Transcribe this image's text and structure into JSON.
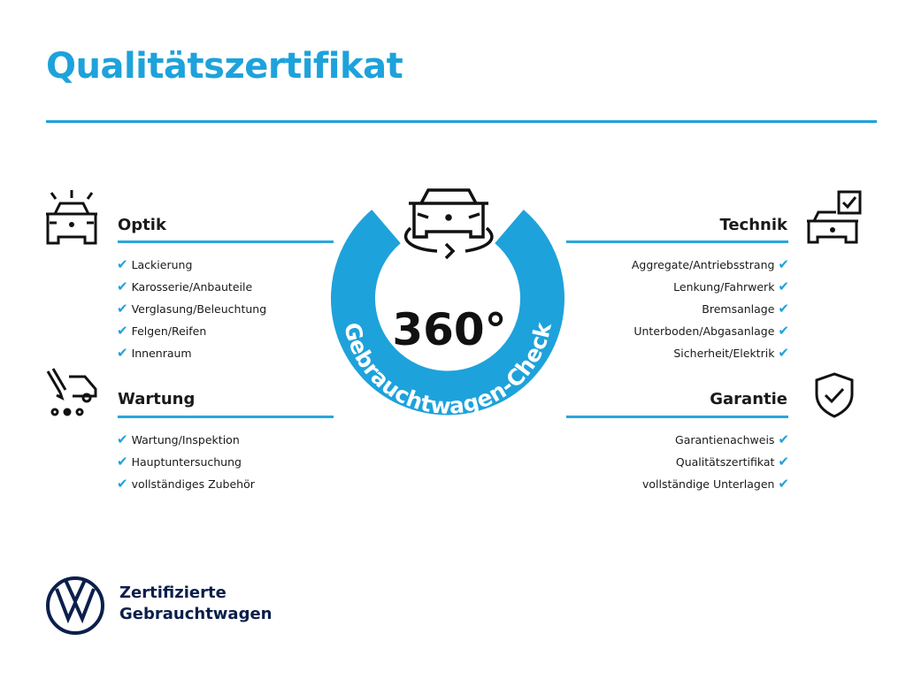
{
  "title": "Qualitätszertifikat",
  "center": {
    "big": "360°",
    "ring_text": "Gebrauchtwagen-Check"
  },
  "sections": {
    "optik": {
      "heading": "Optik",
      "items": [
        "Lackierung",
        "Karosserie/Anbauteile",
        "Verglasung/Beleuchtung",
        "Felgen/Reifen",
        "Innenraum"
      ]
    },
    "wartung": {
      "heading": "Wartung",
      "items": [
        "Wartung/Inspektion",
        "Hauptuntersuchung",
        "vollständiges Zubehör"
      ]
    },
    "technik": {
      "heading": "Technik",
      "items": [
        "Aggregate/Antriebsstrang",
        "Lenkung/Fahrwerk",
        "Bremsanlage",
        "Unterboden/Abgasanlage",
        "Sicherheit/Elektrik"
      ]
    },
    "garantie": {
      "heading": "Garantie",
      "items": [
        "Garantienachweis",
        "Qualitätszertifikat",
        "vollständige Unterlagen"
      ]
    }
  },
  "check": "✔",
  "footer": {
    "line1": "Zertifizierte",
    "line2": "Gebrauchtwagen",
    "logo": "VW"
  },
  "colors": {
    "accent": "#1ea2db",
    "navy": "#0b1f4b"
  }
}
